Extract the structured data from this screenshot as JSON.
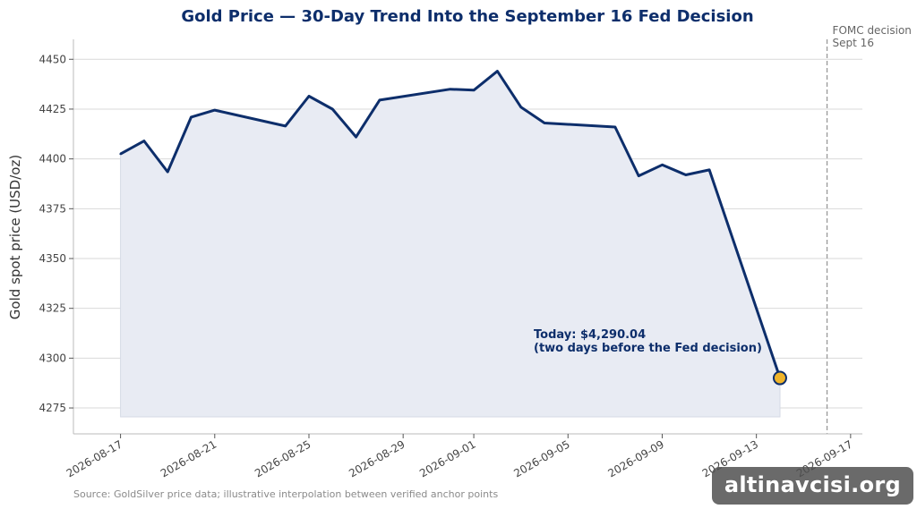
{
  "chart_data": {
    "type": "line",
    "title": "Gold Price — 30-Day Trend Into the September 16 Fed Decision",
    "ylabel": "Gold spot price (USD/oz)",
    "xlabel": "",
    "ylim": [
      4262,
      4460
    ],
    "xlim": [
      "2026-08-15",
      "2026-09-17T12:00"
    ],
    "yticks": [
      4275,
      4300,
      4325,
      4350,
      4375,
      4400,
      4425,
      4450
    ],
    "xticks": [
      "2026-08-17",
      "2026-08-21",
      "2026-08-25",
      "2026-08-29",
      "2026-09-01",
      "2026-09-05",
      "2026-09-09",
      "2026-09-13",
      "2026-09-17"
    ],
    "grid": "horizontal",
    "series": [
      {
        "values": [
          {
            "x": "2026-08-17",
            "y": 4402.5
          },
          {
            "x": "2026-08-18",
            "y": 4409
          },
          {
            "x": "2026-08-19",
            "y": 4393.5
          },
          {
            "x": "2026-08-20",
            "y": 4421
          },
          {
            "x": "2026-08-21",
            "y": 4424.5
          },
          {
            "x": "2026-08-24",
            "y": 4416.5
          },
          {
            "x": "2026-08-25",
            "y": 4431.5
          },
          {
            "x": "2026-08-26",
            "y": 4425
          },
          {
            "x": "2026-08-27",
            "y": 4411
          },
          {
            "x": "2026-08-28",
            "y": 4429.5
          },
          {
            "x": "2026-08-31",
            "y": 4435
          },
          {
            "x": "2026-09-01",
            "y": 4434.5
          },
          {
            "x": "2026-09-02",
            "y": 4444
          },
          {
            "x": "2026-09-03",
            "y": 4426
          },
          {
            "x": "2026-09-04",
            "y": 4418
          },
          {
            "x": "2026-09-07",
            "y": 4416
          },
          {
            "x": "2026-09-08",
            "y": 4391.5
          },
          {
            "x": "2026-09-09",
            "y": 4397
          },
          {
            "x": "2026-09-10",
            "y": 4392
          },
          {
            "x": "2026-09-11",
            "y": 4394.5
          },
          {
            "x": "2026-09-14",
            "y": 4290.04
          }
        ]
      }
    ],
    "highlight_point": {
      "x": "2026-09-14",
      "y": 4290.04
    },
    "vline": {
      "x": "2026-09-16",
      "label_line1": "FOMC decision",
      "label_line2": "Sept 16"
    },
    "annotation": {
      "line1": "Today: $4,290.04",
      "line2": "(two days before the Fed decision)"
    },
    "source": "Source: GoldSilver price data; illustrative interpolation between verified anchor points",
    "colors": {
      "line": "#0d2e6b",
      "fill": "#e8ebf3",
      "marker": "#f0b429",
      "title": "#0d2e6b",
      "grid": "#d9d9d9",
      "vline": "#999999"
    }
  },
  "watermark": "altinavcisi.org"
}
